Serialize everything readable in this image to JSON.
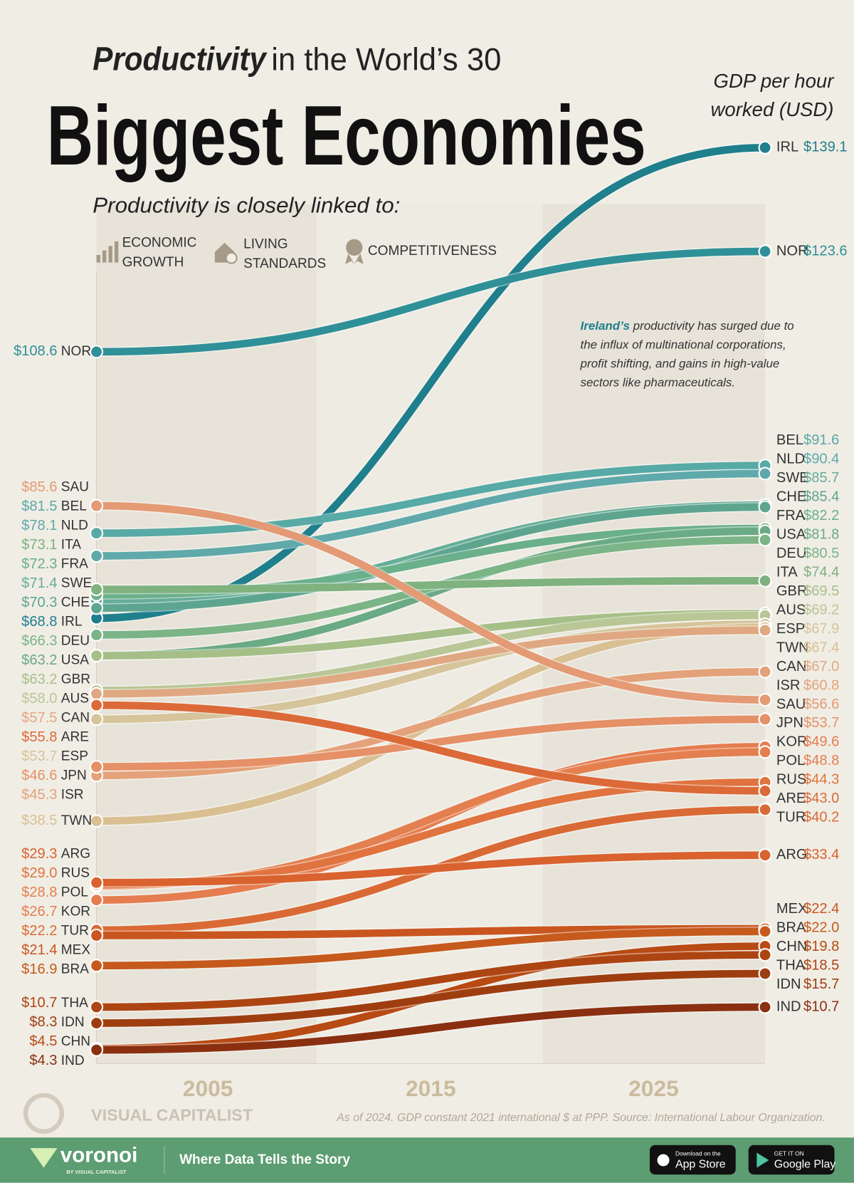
{
  "header": {
    "title_emphasis": "Productivity",
    "title_rest": "in the World’s 30",
    "title_main": "Biggest Economies",
    "subtitle": "Productivity is closely linked to:",
    "themes": [
      "ECONOMIC GROWTH",
      "LIVING STANDARDS",
      "COMPETITIVENESS"
    ]
  },
  "chart_data": {
    "type": "slope",
    "y_label": "GDP per hour worked (USD)",
    "xlim": [
      2000,
      2030
    ],
    "xticks": [
      2005,
      2015,
      2025
    ],
    "ylim": [
      0,
      150
    ],
    "annotation_highlight": "Ireland’s",
    "annotation": "productivity has surged due to the influx of multinational corporations, profit shifting, and gains in high-value sectors like pharmaceuticals.",
    "note": "As of 2024. GDP constant 2021 international $ at PPP. Source: International Labour Organization.",
    "series": [
      {
        "name": "IRL",
        "color": "#1f7f8c",
        "values": [
          68.8,
          139.1
        ],
        "value_labels": [
          "$68.8",
          "$139.1"
        ]
      },
      {
        "name": "NOR",
        "color": "#2f9098",
        "values": [
          108.6,
          123.6
        ],
        "value_labels": [
          "$108.6",
          "$123.6"
        ]
      },
      {
        "name": "BEL",
        "color": "#58aaa6",
        "values": [
          81.5,
          91.6
        ],
        "value_labels": [
          "$81.5",
          "$91.6"
        ]
      },
      {
        "name": "NLD",
        "color": "#5fa9ab",
        "values": [
          78.1,
          90.4
        ],
        "value_labels": [
          "$78.1",
          "$90.4"
        ]
      },
      {
        "name": "SWE",
        "color": "#67ad99",
        "values": [
          71.4,
          85.7
        ],
        "value_labels": [
          "$71.4",
          "$85.7"
        ]
      },
      {
        "name": "CHE",
        "color": "#5ea58f",
        "values": [
          70.3,
          85.4
        ],
        "value_labels": [
          "$70.3",
          "$85.4"
        ]
      },
      {
        "name": "FRA",
        "color": "#6ab08a",
        "values": [
          72.3,
          82.2
        ],
        "value_labels": [
          "$72.3",
          "$82.2"
        ]
      },
      {
        "name": "USA",
        "color": "#6aaa84",
        "values": [
          63.2,
          81.8
        ],
        "value_labels": [
          "$63.2",
          "$81.8"
        ]
      },
      {
        "name": "DEU",
        "color": "#7bb487",
        "values": [
          66.3,
          80.5
        ],
        "value_labels": [
          "$66.3",
          "$80.5"
        ]
      },
      {
        "name": "ITA",
        "color": "#7fb27e",
        "values": [
          73.1,
          74.4
        ],
        "value_labels": [
          "$73.1",
          "$74.4"
        ]
      },
      {
        "name": "GBR",
        "color": "#a6bf88",
        "values": [
          63.2,
          69.5
        ],
        "value_labels": [
          "$63.2",
          "$69.5"
        ]
      },
      {
        "name": "AUS",
        "color": "#b9c695",
        "values": [
          58.0,
          69.2
        ],
        "value_labels": [
          "$58.0",
          "$69.2"
        ]
      },
      {
        "name": "ESP",
        "color": "#d6c49a",
        "values": [
          53.7,
          67.9
        ],
        "value_labels": [
          "$53.7",
          "$67.9"
        ]
      },
      {
        "name": "TWN",
        "color": "#d9bf92",
        "values": [
          38.5,
          67.4
        ],
        "value_labels": [
          "$38.5",
          "$67.4"
        ]
      },
      {
        "name": "CAN",
        "color": "#e0a882",
        "values": [
          57.5,
          67.0
        ],
        "value_labels": [
          "$57.5",
          "$67.0"
        ]
      },
      {
        "name": "ISR",
        "color": "#e4a27a",
        "values": [
          45.3,
          60.8
        ],
        "value_labels": [
          "$45.3",
          "$60.8"
        ]
      },
      {
        "name": "SAU",
        "color": "#e49a74",
        "values": [
          85.6,
          56.6
        ],
        "value_labels": [
          "$85.6",
          "$56.6"
        ]
      },
      {
        "name": "JPN",
        "color": "#e59067",
        "values": [
          46.6,
          53.7
        ],
        "value_labels": [
          "$46.6",
          "$53.7"
        ]
      },
      {
        "name": "KOR",
        "color": "#e57d50",
        "values": [
          26.7,
          49.6
        ],
        "value_labels": [
          "$26.7",
          "$49.6"
        ]
      },
      {
        "name": "POL",
        "color": "#e4804f",
        "values": [
          28.8,
          48.8
        ],
        "value_labels": [
          "$28.8",
          "$48.8"
        ]
      },
      {
        "name": "RUS",
        "color": "#e0733e",
        "values": [
          29.0,
          44.3
        ],
        "value_labels": [
          "$29.0",
          "$44.3"
        ]
      },
      {
        "name": "ARE",
        "color": "#dc6a38",
        "values": [
          55.8,
          43.0
        ],
        "value_labels": [
          "$55.8",
          "$43.0"
        ]
      },
      {
        "name": "TUR",
        "color": "#da6a35",
        "values": [
          22.2,
          40.2
        ],
        "value_labels": [
          "$22.2",
          "$40.2"
        ]
      },
      {
        "name": "ARG",
        "color": "#d9622e",
        "values": [
          29.3,
          33.4
        ],
        "value_labels": [
          "$29.3",
          "$33.4"
        ]
      },
      {
        "name": "MEX",
        "color": "#c9561f",
        "values": [
          21.4,
          22.4
        ],
        "value_labels": [
          "$21.4",
          "$22.4"
        ]
      },
      {
        "name": "BRA",
        "color": "#c55a1c",
        "values": [
          16.9,
          22.0
        ],
        "value_labels": [
          "$16.9",
          "$22.0"
        ]
      },
      {
        "name": "CHN",
        "color": "#b84a14",
        "values": [
          4.5,
          19.8
        ],
        "value_labels": [
          "$4.5",
          "$19.8"
        ]
      },
      {
        "name": "THA",
        "color": "#ad4513",
        "values": [
          10.7,
          18.5
        ],
        "value_labels": [
          "$10.7",
          "$18.5"
        ]
      },
      {
        "name": "IDN",
        "color": "#9e3e10",
        "values": [
          8.3,
          15.7
        ],
        "value_labels": [
          "$8.3",
          "$15.7"
        ]
      },
      {
        "name": "IND",
        "color": "#8a3010",
        "values": [
          4.3,
          10.7
        ],
        "value_labels": [
          "$4.3",
          "$10.7"
        ]
      }
    ]
  },
  "footer": {
    "source_brand": "VISUAL CAPITALIST",
    "brand": "voronoi",
    "brand_by": "BY VISUAL CAPITALIST",
    "tagline": "Where Data Tells the Story",
    "app_store_small": "Download on the",
    "app_store": "App Store",
    "play_small": "GET IT ON",
    "play": "Google Play"
  }
}
